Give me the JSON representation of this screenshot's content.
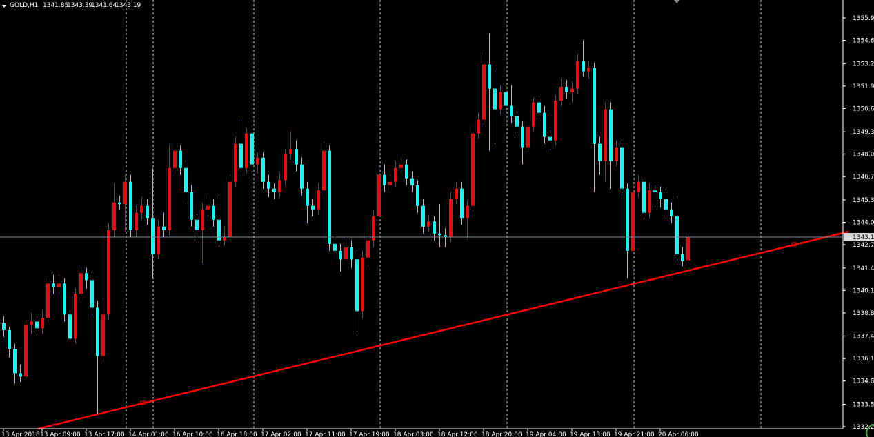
{
  "chart_data": {
    "type": "candlestick",
    "symbol": "GOLD,H1",
    "up_color": "#ff0000",
    "down_color": "#00ffff",
    "price_line_color": "#778899",
    "ylim": [
      1332.08,
      1356.94
    ],
    "yticks": [
      {
        "value": 1355.9,
        "label": "1355.90"
      },
      {
        "value": 1354.6,
        "label": "1354.60"
      },
      1353.25,
      1351.95,
      1350.65,
      {
        "value": 1349.3,
        "label": "1349.30"
      },
      {
        "value": 1348,
        "label": "1348.00"
      },
      {
        "value": 1346.7,
        "label": "1346.70"
      },
      1345.35,
      1344.05,
      1342.75,
      {
        "value": 1341.4,
        "label": "1341.40"
      },
      {
        "value": 1340.1,
        "label": "1340.10"
      },
      {
        "value": 1338.8,
        "label": "1338.80"
      },
      1337.45,
      1336.15,
      1334.85,
      {
        "value": 1333.5,
        "label": "1333.50"
      },
      {
        "value": 1332.2,
        "label": "1332.20"
      }
    ],
    "categories": [
      "13 Apr 2018",
      null,
      null,
      null,
      null,
      null,
      null,
      "13 Apr 09:00",
      null,
      null,
      null,
      null,
      null,
      null,
      null,
      "13 Apr 17:00",
      null,
      null,
      null,
      null,
      null,
      null,
      null,
      "14 Apr 01:00",
      null,
      null,
      null,
      null,
      null,
      null,
      null,
      "16 Apr 10:00",
      null,
      null,
      null,
      null,
      null,
      null,
      null,
      "16 Apr 18:00",
      null,
      null,
      null,
      null,
      null,
      null,
      null,
      "17 Apr 02:00",
      null,
      null,
      null,
      null,
      null,
      null,
      null,
      "17 Apr 11:00",
      null,
      null,
      null,
      null,
      null,
      null,
      null,
      "17 Apr 19:00",
      null,
      null,
      null,
      null,
      null,
      null,
      null,
      "18 Apr 03:00",
      null,
      null,
      null,
      null,
      null,
      null,
      null,
      "18 Apr 12:00",
      null,
      null,
      null,
      null,
      null,
      null,
      null,
      "18 Apr 20:00",
      null,
      null,
      null,
      null,
      null,
      null,
      null,
      "19 Apr 04:00",
      null,
      null,
      null,
      null,
      null,
      null,
      null,
      "19 Apr 13:00",
      null,
      null,
      null,
      null,
      null,
      null,
      null,
      "19 Apr 21:00",
      null,
      null,
      null,
      null,
      null,
      null,
      null,
      "20 Apr 06:00",
      null,
      null,
      null,
      null,
      null
    ],
    "candles": [
      {
        "open": 1338.2,
        "high": 1338.6,
        "low": 1337.4,
        "close": 1337.8
      },
      {
        "open": 1337.8,
        "high": 1338.0,
        "low": 1336.2,
        "close": 1336.7
      },
      {
        "open": 1336.7,
        "high": 1337.0,
        "low": 1334.7,
        "close": 1335.3
      },
      {
        "open": 1335.3,
        "high": 1335.8,
        "low": 1334.8,
        "close": 1335.1
      },
      {
        "open": 1335.1,
        "high": 1338.4,
        "low": 1334.9,
        "close": 1338.1
      },
      {
        "open": 1338.1,
        "high": 1338.8,
        "low": 1337.6,
        "close": 1338.3
      },
      {
        "open": 1338.3,
        "high": 1338.6,
        "low": 1337.5,
        "close": 1337.9
      },
      {
        "open": 1337.9,
        "high": 1339.0,
        "low": 1337.6,
        "close": 1338.5
      },
      {
        "open": 1338.5,
        "high": 1340.8,
        "low": 1338.2,
        "close": 1340.5
      },
      {
        "open": 1340.5,
        "high": 1341.0,
        "low": 1339.9,
        "close": 1340.3
      },
      {
        "open": 1340.3,
        "high": 1341.0,
        "low": 1339.8,
        "close": 1340.5
      },
      {
        "open": 1340.5,
        "high": 1340.8,
        "low": 1338.3,
        "close": 1338.7
      },
      {
        "open": 1338.7,
        "high": 1339.0,
        "low": 1336.8,
        "close": 1337.3
      },
      {
        "open": 1337.3,
        "high": 1340.2,
        "low": 1337.0,
        "close": 1339.9
      },
      {
        "open": 1339.9,
        "high": 1341.5,
        "low": 1339.5,
        "close": 1341.1
      },
      {
        "open": 1341.1,
        "high": 1341.4,
        "low": 1340.2,
        "close": 1340.7
      },
      {
        "open": 1340.7,
        "high": 1341.0,
        "low": 1338.6,
        "close": 1339.1
      },
      {
        "open": 1339.1,
        "high": 1339.5,
        "low": 1332.9,
        "close": 1336.3
      },
      {
        "open": 1336.3,
        "high": 1339.5,
        "low": 1335.9,
        "close": 1338.7
      },
      {
        "open": 1338.7,
        "high": 1344.0,
        "low": 1338.4,
        "close": 1343.6
      },
      {
        "open": 1343.6,
        "high": 1346.3,
        "low": 1343.2,
        "close": 1345.2
      },
      {
        "open": 1345.2,
        "high": 1345.6,
        "low": 1344.8,
        "close": 1345.1
      },
      {
        "open": 1345.1,
        "high": 1346.8,
        "low": 1343.5,
        "close": 1346.4
      },
      {
        "open": 1346.4,
        "high": 1346.8,
        "low": 1343.2,
        "close": 1343.6
      },
      {
        "open": 1343.6,
        "high": 1345.0,
        "low": 1343.2,
        "close": 1344.6
      },
      {
        "open": 1344.6,
        "high": 1345.5,
        "low": 1344.2,
        "close": 1345.0
      },
      {
        "open": 1345.0,
        "high": 1345.4,
        "low": 1343.9,
        "close": 1344.3
      },
      {
        "open": 1344.3,
        "high": 1347.2,
        "low": 1340.8,
        "close": 1342.2
      },
      {
        "open": 1342.2,
        "high": 1344.2,
        "low": 1341.9,
        "close": 1343.8
      },
      {
        "open": 1343.8,
        "high": 1344.6,
        "low": 1343.2,
        "close": 1343.6
      },
      {
        "open": 1343.6,
        "high": 1348.5,
        "low": 1343.3,
        "close": 1347.2
      },
      {
        "open": 1347.2,
        "high": 1348.6,
        "low": 1346.8,
        "close": 1348.2
      },
      {
        "open": 1348.2,
        "high": 1348.5,
        "low": 1346.8,
        "close": 1347.2
      },
      {
        "open": 1347.2,
        "high": 1347.6,
        "low": 1345.2,
        "close": 1345.8
      },
      {
        "open": 1345.8,
        "high": 1346.2,
        "low": 1343.8,
        "close": 1344.2
      },
      {
        "open": 1344.2,
        "high": 1344.5,
        "low": 1343.0,
        "close": 1343.6
      },
      {
        "open": 1343.6,
        "high": 1345.2,
        "low": 1341.7,
        "close": 1344.8
      },
      {
        "open": 1344.8,
        "high": 1345.6,
        "low": 1344.4,
        "close": 1345.0
      },
      {
        "open": 1345.0,
        "high": 1345.4,
        "low": 1343.8,
        "close": 1344.2
      },
      {
        "open": 1344.2,
        "high": 1345.5,
        "low": 1342.6,
        "close": 1343.0
      },
      {
        "open": 1343.0,
        "high": 1343.8,
        "low": 1342.7,
        "close": 1343.2
      },
      {
        "open": 1343.2,
        "high": 1346.8,
        "low": 1342.9,
        "close": 1346.4
      },
      {
        "open": 1346.4,
        "high": 1349.0,
        "low": 1346.1,
        "close": 1348.6
      },
      {
        "open": 1348.6,
        "high": 1350.0,
        "low": 1346.8,
        "close": 1347.2
      },
      {
        "open": 1347.2,
        "high": 1349.5,
        "low": 1346.9,
        "close": 1349.2
      },
      {
        "open": 1349.2,
        "high": 1349.6,
        "low": 1347.0,
        "close": 1347.4
      },
      {
        "open": 1347.4,
        "high": 1348.1,
        "low": 1346.9,
        "close": 1347.8
      },
      {
        "open": 1347.8,
        "high": 1348.1,
        "low": 1346.0,
        "close": 1346.4
      },
      {
        "open": 1346.4,
        "high": 1346.8,
        "low": 1345.5,
        "close": 1346.0
      },
      {
        "open": 1346.0,
        "high": 1346.3,
        "low": 1345.4,
        "close": 1345.8
      },
      {
        "open": 1345.8,
        "high": 1346.9,
        "low": 1345.5,
        "close": 1346.5
      },
      {
        "open": 1346.5,
        "high": 1348.3,
        "low": 1346.2,
        "close": 1348.0
      },
      {
        "open": 1348.0,
        "high": 1349.3,
        "low": 1347.7,
        "close": 1348.3
      },
      {
        "open": 1348.3,
        "high": 1348.8,
        "low": 1347.0,
        "close": 1347.4
      },
      {
        "open": 1347.4,
        "high": 1347.8,
        "low": 1345.6,
        "close": 1346.0
      },
      {
        "open": 1346.0,
        "high": 1346.4,
        "low": 1344.0,
        "close": 1345.0
      },
      {
        "open": 1345.0,
        "high": 1345.4,
        "low": 1344.4,
        "close": 1344.8
      },
      {
        "open": 1344.8,
        "high": 1346.3,
        "low": 1344.5,
        "close": 1345.9
      },
      {
        "open": 1345.9,
        "high": 1348.7,
        "low": 1345.6,
        "close": 1348.2
      },
      {
        "open": 1348.2,
        "high": 1348.5,
        "low": 1342.4,
        "close": 1342.8
      },
      {
        "open": 1342.8,
        "high": 1343.5,
        "low": 1341.6,
        "close": 1342.4
      },
      {
        "open": 1342.4,
        "high": 1342.8,
        "low": 1341.2,
        "close": 1341.9
      },
      {
        "open": 1341.9,
        "high": 1343.1,
        "low": 1341.6,
        "close": 1342.6
      },
      {
        "open": 1342.6,
        "high": 1343.0,
        "low": 1341.4,
        "close": 1341.9
      },
      {
        "open": 1341.9,
        "high": 1342.3,
        "low": 1337.7,
        "close": 1338.9
      },
      {
        "open": 1338.9,
        "high": 1342.4,
        "low": 1338.5,
        "close": 1342.0
      },
      {
        "open": 1342.0,
        "high": 1343.8,
        "low": 1341.4,
        "close": 1343.0
      },
      {
        "open": 1343.0,
        "high": 1344.8,
        "low": 1342.6,
        "close": 1344.4
      },
      {
        "open": 1344.4,
        "high": 1347.2,
        "low": 1344.0,
        "close": 1346.8
      },
      {
        "open": 1346.8,
        "high": 1347.4,
        "low": 1345.8,
        "close": 1346.2
      },
      {
        "open": 1346.2,
        "high": 1346.8,
        "low": 1345.9,
        "close": 1346.4
      },
      {
        "open": 1346.4,
        "high": 1347.6,
        "low": 1346.1,
        "close": 1347.2
      },
      {
        "open": 1347.2,
        "high": 1347.8,
        "low": 1346.9,
        "close": 1347.4
      },
      {
        "open": 1347.4,
        "high": 1347.7,
        "low": 1346.2,
        "close": 1346.6
      },
      {
        "open": 1346.6,
        "high": 1347.0,
        "low": 1345.8,
        "close": 1346.2
      },
      {
        "open": 1346.2,
        "high": 1346.5,
        "low": 1344.6,
        "close": 1345.0
      },
      {
        "open": 1345.0,
        "high": 1345.4,
        "low": 1343.4,
        "close": 1343.8
      },
      {
        "open": 1343.8,
        "high": 1344.5,
        "low": 1343.5,
        "close": 1344.1
      },
      {
        "open": 1344.1,
        "high": 1344.4,
        "low": 1343.0,
        "close": 1343.4
      },
      {
        "open": 1343.4,
        "high": 1345.1,
        "low": 1342.6,
        "close": 1343.3
      },
      {
        "open": 1343.3,
        "high": 1343.7,
        "low": 1342.6,
        "close": 1343.2
      },
      {
        "open": 1343.2,
        "high": 1345.8,
        "low": 1342.9,
        "close": 1345.4
      },
      {
        "open": 1345.4,
        "high": 1346.4,
        "low": 1345.1,
        "close": 1346.0
      },
      {
        "open": 1346.0,
        "high": 1346.4,
        "low": 1343.9,
        "close": 1344.3
      },
      {
        "open": 1344.3,
        "high": 1345.3,
        "low": 1343.1,
        "close": 1345.0
      },
      {
        "open": 1345.0,
        "high": 1349.6,
        "low": 1344.7,
        "close": 1349.2
      },
      {
        "open": 1349.2,
        "high": 1350.4,
        "low": 1348.9,
        "close": 1350.0
      },
      {
        "open": 1350.0,
        "high": 1353.9,
        "low": 1349.7,
        "close": 1353.2
      },
      {
        "open": 1353.2,
        "high": 1355.0,
        "low": 1348.2,
        "close": 1351.8
      },
      {
        "open": 1351.8,
        "high": 1352.9,
        "low": 1348.6,
        "close": 1350.6
      },
      {
        "open": 1350.6,
        "high": 1352.0,
        "low": 1350.3,
        "close": 1351.6
      },
      {
        "open": 1351.6,
        "high": 1352.0,
        "low": 1350.4,
        "close": 1350.8
      },
      {
        "open": 1350.8,
        "high": 1352.0,
        "low": 1349.8,
        "close": 1350.2
      },
      {
        "open": 1350.2,
        "high": 1350.5,
        "low": 1349.2,
        "close": 1349.6
      },
      {
        "open": 1349.6,
        "high": 1349.9,
        "low": 1347.4,
        "close": 1348.4
      },
      {
        "open": 1348.4,
        "high": 1349.9,
        "low": 1348.1,
        "close": 1349.6
      },
      {
        "open": 1349.6,
        "high": 1351.3,
        "low": 1349.3,
        "close": 1351.0
      },
      {
        "open": 1351.0,
        "high": 1351.4,
        "low": 1350.0,
        "close": 1350.4
      },
      {
        "open": 1350.4,
        "high": 1350.8,
        "low": 1348.6,
        "close": 1349.0
      },
      {
        "open": 1349.0,
        "high": 1349.4,
        "low": 1348.2,
        "close": 1348.8
      },
      {
        "open": 1348.8,
        "high": 1351.4,
        "low": 1348.5,
        "close": 1351.1
      },
      {
        "open": 1351.1,
        "high": 1352.4,
        "low": 1350.8,
        "close": 1351.9
      },
      {
        "open": 1351.9,
        "high": 1352.3,
        "low": 1351.2,
        "close": 1351.6
      },
      {
        "open": 1351.6,
        "high": 1352.2,
        "low": 1351.0,
        "close": 1351.8
      },
      {
        "open": 1351.8,
        "high": 1353.8,
        "low": 1351.5,
        "close": 1353.4
      },
      {
        "open": 1353.4,
        "high": 1354.6,
        "low": 1352.5,
        "close": 1352.8
      },
      {
        "open": 1352.8,
        "high": 1353.4,
        "low": 1352.4,
        "close": 1353.0
      },
      {
        "open": 1353.0,
        "high": 1353.3,
        "low": 1345.8,
        "close": 1348.6
      },
      {
        "open": 1348.6,
        "high": 1349.0,
        "low": 1346.8,
        "close": 1347.6
      },
      {
        "open": 1347.6,
        "high": 1351.0,
        "low": 1346.4,
        "close": 1350.6
      },
      {
        "open": 1350.6,
        "high": 1351.0,
        "low": 1346.0,
        "close": 1347.6
      },
      {
        "open": 1347.6,
        "high": 1348.8,
        "low": 1347.3,
        "close": 1348.4
      },
      {
        "open": 1348.4,
        "high": 1348.7,
        "low": 1345.6,
        "close": 1346.0
      },
      {
        "open": 1346.0,
        "high": 1346.3,
        "low": 1340.8,
        "close": 1342.4
      },
      {
        "open": 1342.4,
        "high": 1346.2,
        "low": 1341.4,
        "close": 1345.8
      },
      {
        "open": 1345.8,
        "high": 1346.8,
        "low": 1345.5,
        "close": 1346.4
      },
      {
        "open": 1346.4,
        "high": 1346.7,
        "low": 1344.2,
        "close": 1344.6
      },
      {
        "open": 1344.6,
        "high": 1346.3,
        "low": 1344.3,
        "close": 1345.9
      },
      {
        "open": 1345.9,
        "high": 1346.2,
        "low": 1344.9,
        "close": 1345.8
      },
      {
        "open": 1345.8,
        "high": 1346.1,
        "low": 1344.9,
        "close": 1345.4
      },
      {
        "open": 1345.4,
        "high": 1345.8,
        "low": 1344.4,
        "close": 1344.8
      },
      {
        "open": 1344.8,
        "high": 1345.2,
        "low": 1344.0,
        "close": 1344.4
      },
      {
        "open": 1344.4,
        "high": 1345.6,
        "low": 1341.8,
        "close": 1342.2
      },
      {
        "open": 1342.2,
        "high": 1342.6,
        "low": 1341.5,
        "close": 1341.8
      },
      {
        "open": 1341.85,
        "high": 1343.39,
        "low": 1341.64,
        "close": 1343.19
      }
    ]
  }
}
